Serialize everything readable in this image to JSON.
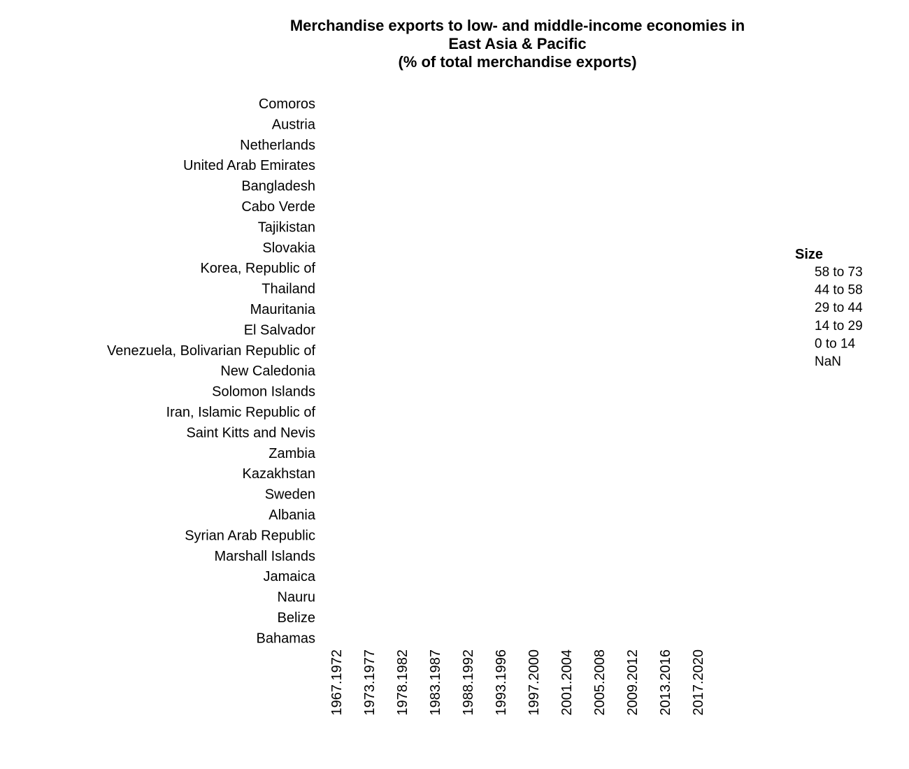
{
  "chart_data": {
    "type": "heatmap",
    "title": [
      "Merchandise exports to low- and middle-income economies in",
      "East Asia & Pacific",
      "(% of total merchandise exports)"
    ],
    "rows": [
      "Comoros",
      "Austria",
      "Netherlands",
      "United Arab Emirates",
      "Bangladesh",
      "Cabo Verde",
      "Tajikistan",
      "Slovakia",
      "Korea, Republic of",
      "Thailand",
      "Mauritania",
      "El Salvador",
      "Venezuela, Bolivarian Republic of",
      "New Caledonia",
      "Solomon Islands",
      "Iran, Islamic Republic of",
      "Saint Kitts and Nevis",
      "Zambia",
      "Kazakhstan",
      "Sweden",
      "Albania",
      "Syrian Arab Republic",
      "Marshall Islands",
      "Jamaica",
      "Nauru",
      "Belize",
      "Bahamas"
    ],
    "columns": [
      "1967.1972",
      "1973.1977",
      "1978.1982",
      "1983.1987",
      "1988.1992",
      "1993.1996",
      "1997.2000",
      "2001.2004",
      "2005.2008",
      "2009.2012",
      "2013.2016",
      "2017.2020"
    ],
    "values": [],
    "legend": {
      "title": "Size",
      "placement": "right",
      "entries": [
        "58 to 73",
        "44 to 58",
        "29 to 44",
        "14 to 29",
        "0 to 14",
        "NaN"
      ]
    }
  }
}
